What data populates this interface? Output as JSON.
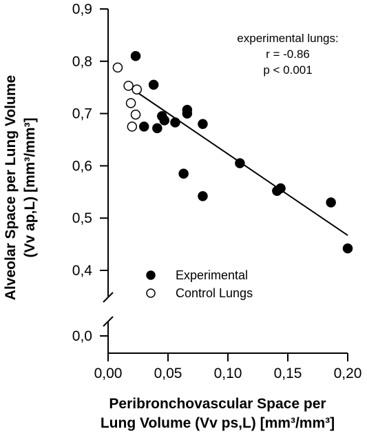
{
  "chart_data": {
    "type": "scatter",
    "xlabel_lines": [
      "Peribronchovascular Space per",
      "Lung Volume (Vv ps,L) [mm³/mm³]"
    ],
    "ylabel_lines": [
      "Alveolar Space per Lung Volume",
      "(Vv ap,L) [mm³/mm³]"
    ],
    "x_ticks": [
      {
        "value": 0.0,
        "label": "0,00"
      },
      {
        "value": 0.05,
        "label": "0,05"
      },
      {
        "value": 0.1,
        "label": "0,10"
      },
      {
        "value": 0.15,
        "label": "0,15"
      },
      {
        "value": 0.2,
        "label": "0,20"
      }
    ],
    "y_ticks": [
      {
        "value": 0.0,
        "label": "0,0"
      },
      {
        "value": 0.4,
        "label": "0,4"
      },
      {
        "value": 0.5,
        "label": "0,5"
      },
      {
        "value": 0.6,
        "label": "0,6"
      },
      {
        "value": 0.7,
        "label": "0,7"
      },
      {
        "value": 0.8,
        "label": "0,8"
      },
      {
        "value": 0.9,
        "label": "0,9"
      }
    ],
    "xlim": [
      0.0,
      0.2
    ],
    "ylim": [
      0.0,
      0.9
    ],
    "y_axis_break": [
      0.0,
      0.4
    ],
    "grid": false,
    "legend_position": "lower-left",
    "annotation_lines": [
      "experimental lungs:",
      "r = -0.86",
      "p < 0.001"
    ],
    "series": [
      {
        "name": "Experimental",
        "marker": "filled-circle",
        "points": [
          {
            "x": 0.023,
            "y": 0.81
          },
          {
            "x": 0.038,
            "y": 0.755
          },
          {
            "x": 0.03,
            "y": 0.675
          },
          {
            "x": 0.041,
            "y": 0.672
          },
          {
            "x": 0.045,
            "y": 0.695
          },
          {
            "x": 0.047,
            "y": 0.687
          },
          {
            "x": 0.056,
            "y": 0.683
          },
          {
            "x": 0.066,
            "y": 0.707
          },
          {
            "x": 0.066,
            "y": 0.7
          },
          {
            "x": 0.079,
            "y": 0.68
          },
          {
            "x": 0.063,
            "y": 0.585
          },
          {
            "x": 0.079,
            "y": 0.542
          },
          {
            "x": 0.11,
            "y": 0.605
          },
          {
            "x": 0.141,
            "y": 0.552
          },
          {
            "x": 0.144,
            "y": 0.557
          },
          {
            "x": 0.186,
            "y": 0.53
          },
          {
            "x": 0.2,
            "y": 0.442
          }
        ]
      },
      {
        "name": "Control Lungs",
        "marker": "open-circle",
        "points": [
          {
            "x": 0.008,
            "y": 0.788
          },
          {
            "x": 0.017,
            "y": 0.753
          },
          {
            "x": 0.024,
            "y": 0.746
          },
          {
            "x": 0.019,
            "y": 0.72
          },
          {
            "x": 0.023,
            "y": 0.698
          },
          {
            "x": 0.02,
            "y": 0.675
          }
        ]
      }
    ],
    "regression_line": {
      "x": [
        0.022,
        0.2
      ],
      "y": [
        0.744,
        0.467
      ]
    },
    "colors": {
      "ink": "#000000",
      "background": "#ffffff"
    }
  }
}
